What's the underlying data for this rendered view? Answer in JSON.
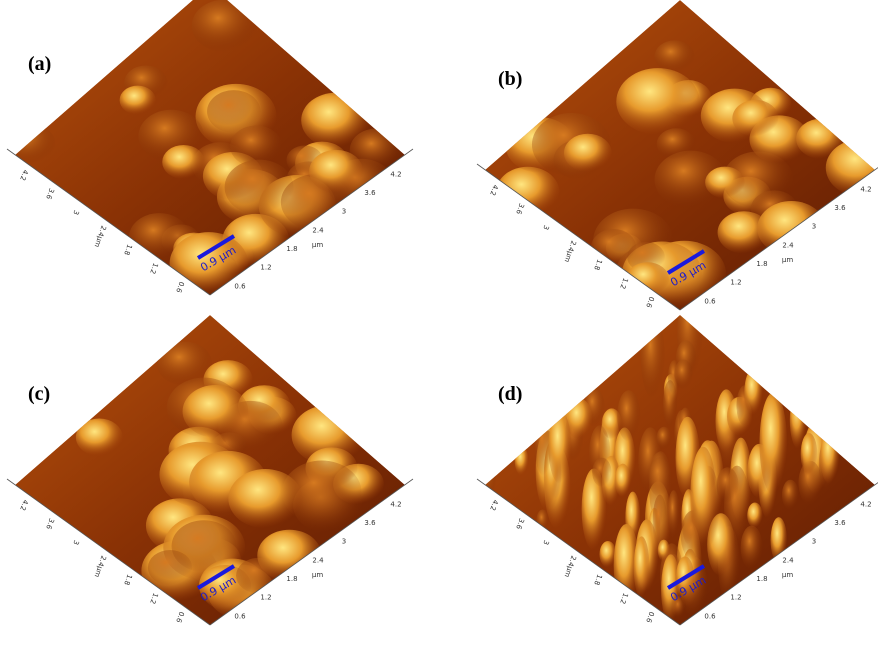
{
  "panels": [
    {
      "label": "(a)",
      "scale_bar": "0.9 μm"
    },
    {
      "label": "(b)",
      "scale_bar": "0.9 μm"
    },
    {
      "label": "(c)",
      "scale_bar": "0.9 μm"
    },
    {
      "label": "(d)",
      "scale_bar": "0.9 μm"
    }
  ],
  "axis": {
    "ticks": [
      "0.6",
      "1.2",
      "1.8",
      "2.4",
      "3",
      "3.6",
      "4.2"
    ],
    "unit": "μm"
  }
}
